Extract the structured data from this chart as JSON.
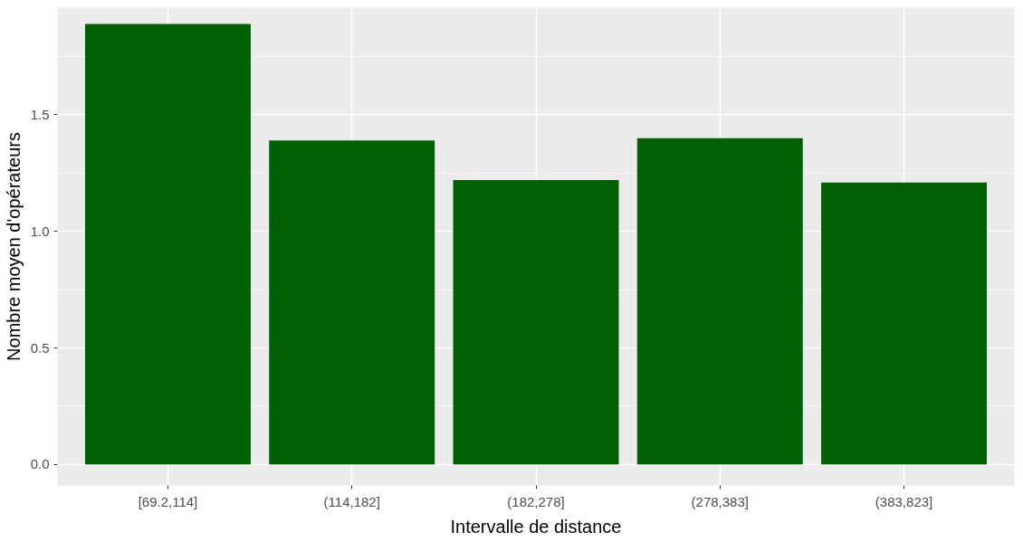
{
  "chart_data": {
    "type": "bar",
    "xlabel": "Intervalle de distance",
    "ylabel": "Nombre moyen d'opérateurs",
    "categories": [
      "[69.2,114]",
      "(114,182]",
      "(182,278]",
      "(278,383]",
      "(383,823]"
    ],
    "values": [
      1.89,
      1.39,
      1.22,
      1.4,
      1.21
    ],
    "color": "#005f00",
    "ylim": [
      -0.09,
      1.96
    ],
    "yticks": [
      {
        "value": 0,
        "label": "0.0"
      },
      {
        "value": 0.5,
        "label": "0.5"
      },
      {
        "value": 1,
        "label": "1.0"
      },
      {
        "value": 1.5,
        "label": "1.5"
      }
    ],
    "grid": true
  }
}
